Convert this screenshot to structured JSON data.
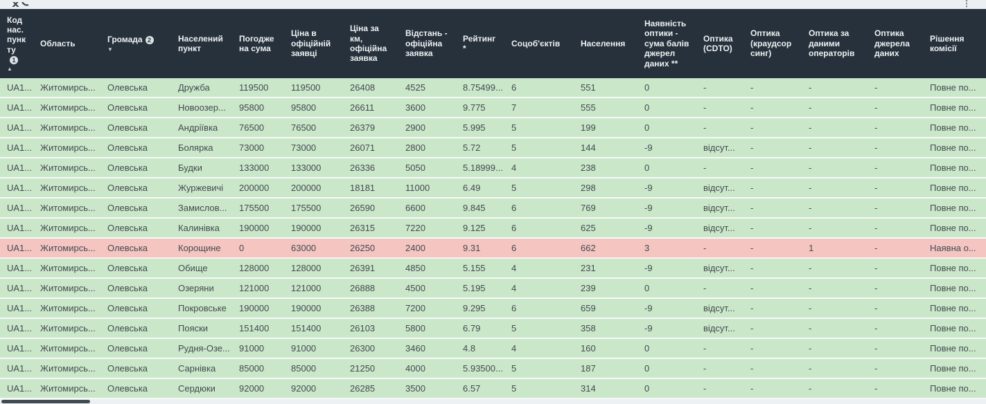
{
  "toolbar": {
    "kebab_icon": "⋮"
  },
  "colors": {
    "page_bg": "#eef1f4",
    "header_bg": "#26313b",
    "header_fg": "#eef1f3",
    "row_green": "#cbe7ca",
    "row_red": "#f5c5c2",
    "row_fg": "#424a4e"
  },
  "table": {
    "columns": [
      {
        "label": "Код нас. пункту",
        "badge": "1",
        "sort": "asc"
      },
      {
        "label": "Область"
      },
      {
        "label": "Громада",
        "badge": "2",
        "sort": "desc"
      },
      {
        "label": "Населений пункт"
      },
      {
        "label": "Погоджена сума"
      },
      {
        "label": "Ціна в офіційній заявці"
      },
      {
        "label": "Ціна за км, офіційна заявка"
      },
      {
        "label": "Відстань - офіційна заявка"
      },
      {
        "label": "Рейтинг *"
      },
      {
        "label": "Соцоб'єктів"
      },
      {
        "label": "Населення"
      },
      {
        "label": "Наявність оптики - сума балів джерел даних **"
      },
      {
        "label": "Оптика (CDTO)"
      },
      {
        "label": "Оптика (краудсорсинг)"
      },
      {
        "label": "Оптика за даними операторів"
      },
      {
        "label": "Оптика джерела даних"
      },
      {
        "label": "Рішення комісії"
      }
    ],
    "rows": [
      {
        "highlight": false,
        "cells": [
          "UA1...",
          "Житомирсь...",
          "Олевська",
          "Дружба",
          "119500",
          "119500",
          "26408",
          "4525",
          "8.75499...",
          "6",
          "551",
          "0",
          "-",
          "-",
          "-",
          "-",
          "Повне по..."
        ]
      },
      {
        "highlight": false,
        "cells": [
          "UA1...",
          "Житомирсь...",
          "Олевська",
          "Новоозер...",
          "95800",
          "95800",
          "26611",
          "3600",
          "9.775",
          "7",
          "555",
          "0",
          "-",
          "-",
          "-",
          "-",
          "Повне по..."
        ]
      },
      {
        "highlight": false,
        "cells": [
          "UA1...",
          "Житомирсь...",
          "Олевська",
          "Андріївка",
          "76500",
          "76500",
          "26379",
          "2900",
          "5.995",
          "5",
          "199",
          "0",
          "-",
          "-",
          "-",
          "-",
          "Повне по..."
        ]
      },
      {
        "highlight": false,
        "cells": [
          "UA1...",
          "Житомирсь...",
          "Олевська",
          "Болярка",
          "73000",
          "73000",
          "26071",
          "2800",
          "5.72",
          "5",
          "144",
          "-9",
          "відсут...",
          "-",
          "-",
          "-",
          "Повне по..."
        ]
      },
      {
        "highlight": false,
        "cells": [
          "UA1...",
          "Житомирсь...",
          "Олевська",
          "Будки",
          "133000",
          "133000",
          "26336",
          "5050",
          "5.18999...",
          "4",
          "238",
          "0",
          "-",
          "-",
          "-",
          "-",
          "Повне по..."
        ]
      },
      {
        "highlight": false,
        "cells": [
          "UA1...",
          "Житомирсь...",
          "Олевська",
          "Журжевичі",
          "200000",
          "200000",
          "18181",
          "11000",
          "6.49",
          "5",
          "298",
          "-9",
          "відсут...",
          "-",
          "-",
          "-",
          "Повне по..."
        ]
      },
      {
        "highlight": false,
        "cells": [
          "UA1...",
          "Житомирсь...",
          "Олевська",
          "Замислов...",
          "175500",
          "175500",
          "26590",
          "6600",
          "9.845",
          "6",
          "769",
          "-9",
          "відсут...",
          "-",
          "-",
          "-",
          "Повне по..."
        ]
      },
      {
        "highlight": false,
        "cells": [
          "UA1...",
          "Житомирсь...",
          "Олевська",
          "Калинівка",
          "190000",
          "190000",
          "26315",
          "7220",
          "9.125",
          "6",
          "625",
          "-9",
          "відсут...",
          "-",
          "-",
          "-",
          "Повне по..."
        ]
      },
      {
        "highlight": true,
        "cells": [
          "UA1...",
          "Житомирсь...",
          "Олевська",
          "Корощине",
          "0",
          "63000",
          "26250",
          "2400",
          "9.31",
          "6",
          "662",
          "3",
          "-",
          "-",
          "1",
          "-",
          "Наявна о..."
        ]
      },
      {
        "highlight": false,
        "cells": [
          "UA1...",
          "Житомирсь...",
          "Олевська",
          "Обище",
          "128000",
          "128000",
          "26391",
          "4850",
          "5.155",
          "4",
          "231",
          "-9",
          "відсут...",
          "-",
          "-",
          "-",
          "Повне по..."
        ]
      },
      {
        "highlight": false,
        "cells": [
          "UA1...",
          "Житомирсь...",
          "Олевська",
          "Озеряни",
          "121000",
          "121000",
          "26888",
          "4500",
          "5.195",
          "4",
          "239",
          "0",
          "-",
          "-",
          "-",
          "-",
          "Повне по..."
        ]
      },
      {
        "highlight": false,
        "cells": [
          "UA1...",
          "Житомирсь...",
          "Олевська",
          "Покровське",
          "190000",
          "190000",
          "26388",
          "7200",
          "9.295",
          "6",
          "659",
          "-9",
          "відсут...",
          "-",
          "-",
          "-",
          "Повне по..."
        ]
      },
      {
        "highlight": false,
        "cells": [
          "UA1...",
          "Житомирсь...",
          "Олевська",
          "Пояски",
          "151400",
          "151400",
          "26103",
          "5800",
          "6.79",
          "5",
          "358",
          "-9",
          "відсут...",
          "-",
          "-",
          "-",
          "Повне по..."
        ]
      },
      {
        "highlight": false,
        "cells": [
          "UA1...",
          "Житомирсь...",
          "Олевська",
          "Рудня-Озе...",
          "91000",
          "91000",
          "26300",
          "3460",
          "4.8",
          "4",
          "160",
          "0",
          "-",
          "-",
          "-",
          "-",
          "Повне по..."
        ]
      },
      {
        "highlight": false,
        "cells": [
          "UA1...",
          "Житомирсь...",
          "Олевська",
          "Сарнівка",
          "85000",
          "85000",
          "21250",
          "4000",
          "5.93500...",
          "5",
          "187",
          "0",
          "-",
          "-",
          "-",
          "-",
          "Повне по..."
        ]
      },
      {
        "highlight": false,
        "cells": [
          "UA1...",
          "Житомирсь...",
          "Олевська",
          "Сердюки",
          "92000",
          "92000",
          "26285",
          "3500",
          "6.57",
          "5",
          "314",
          "0",
          "-",
          "-",
          "-",
          "-",
          "Повне по..."
        ]
      }
    ]
  }
}
